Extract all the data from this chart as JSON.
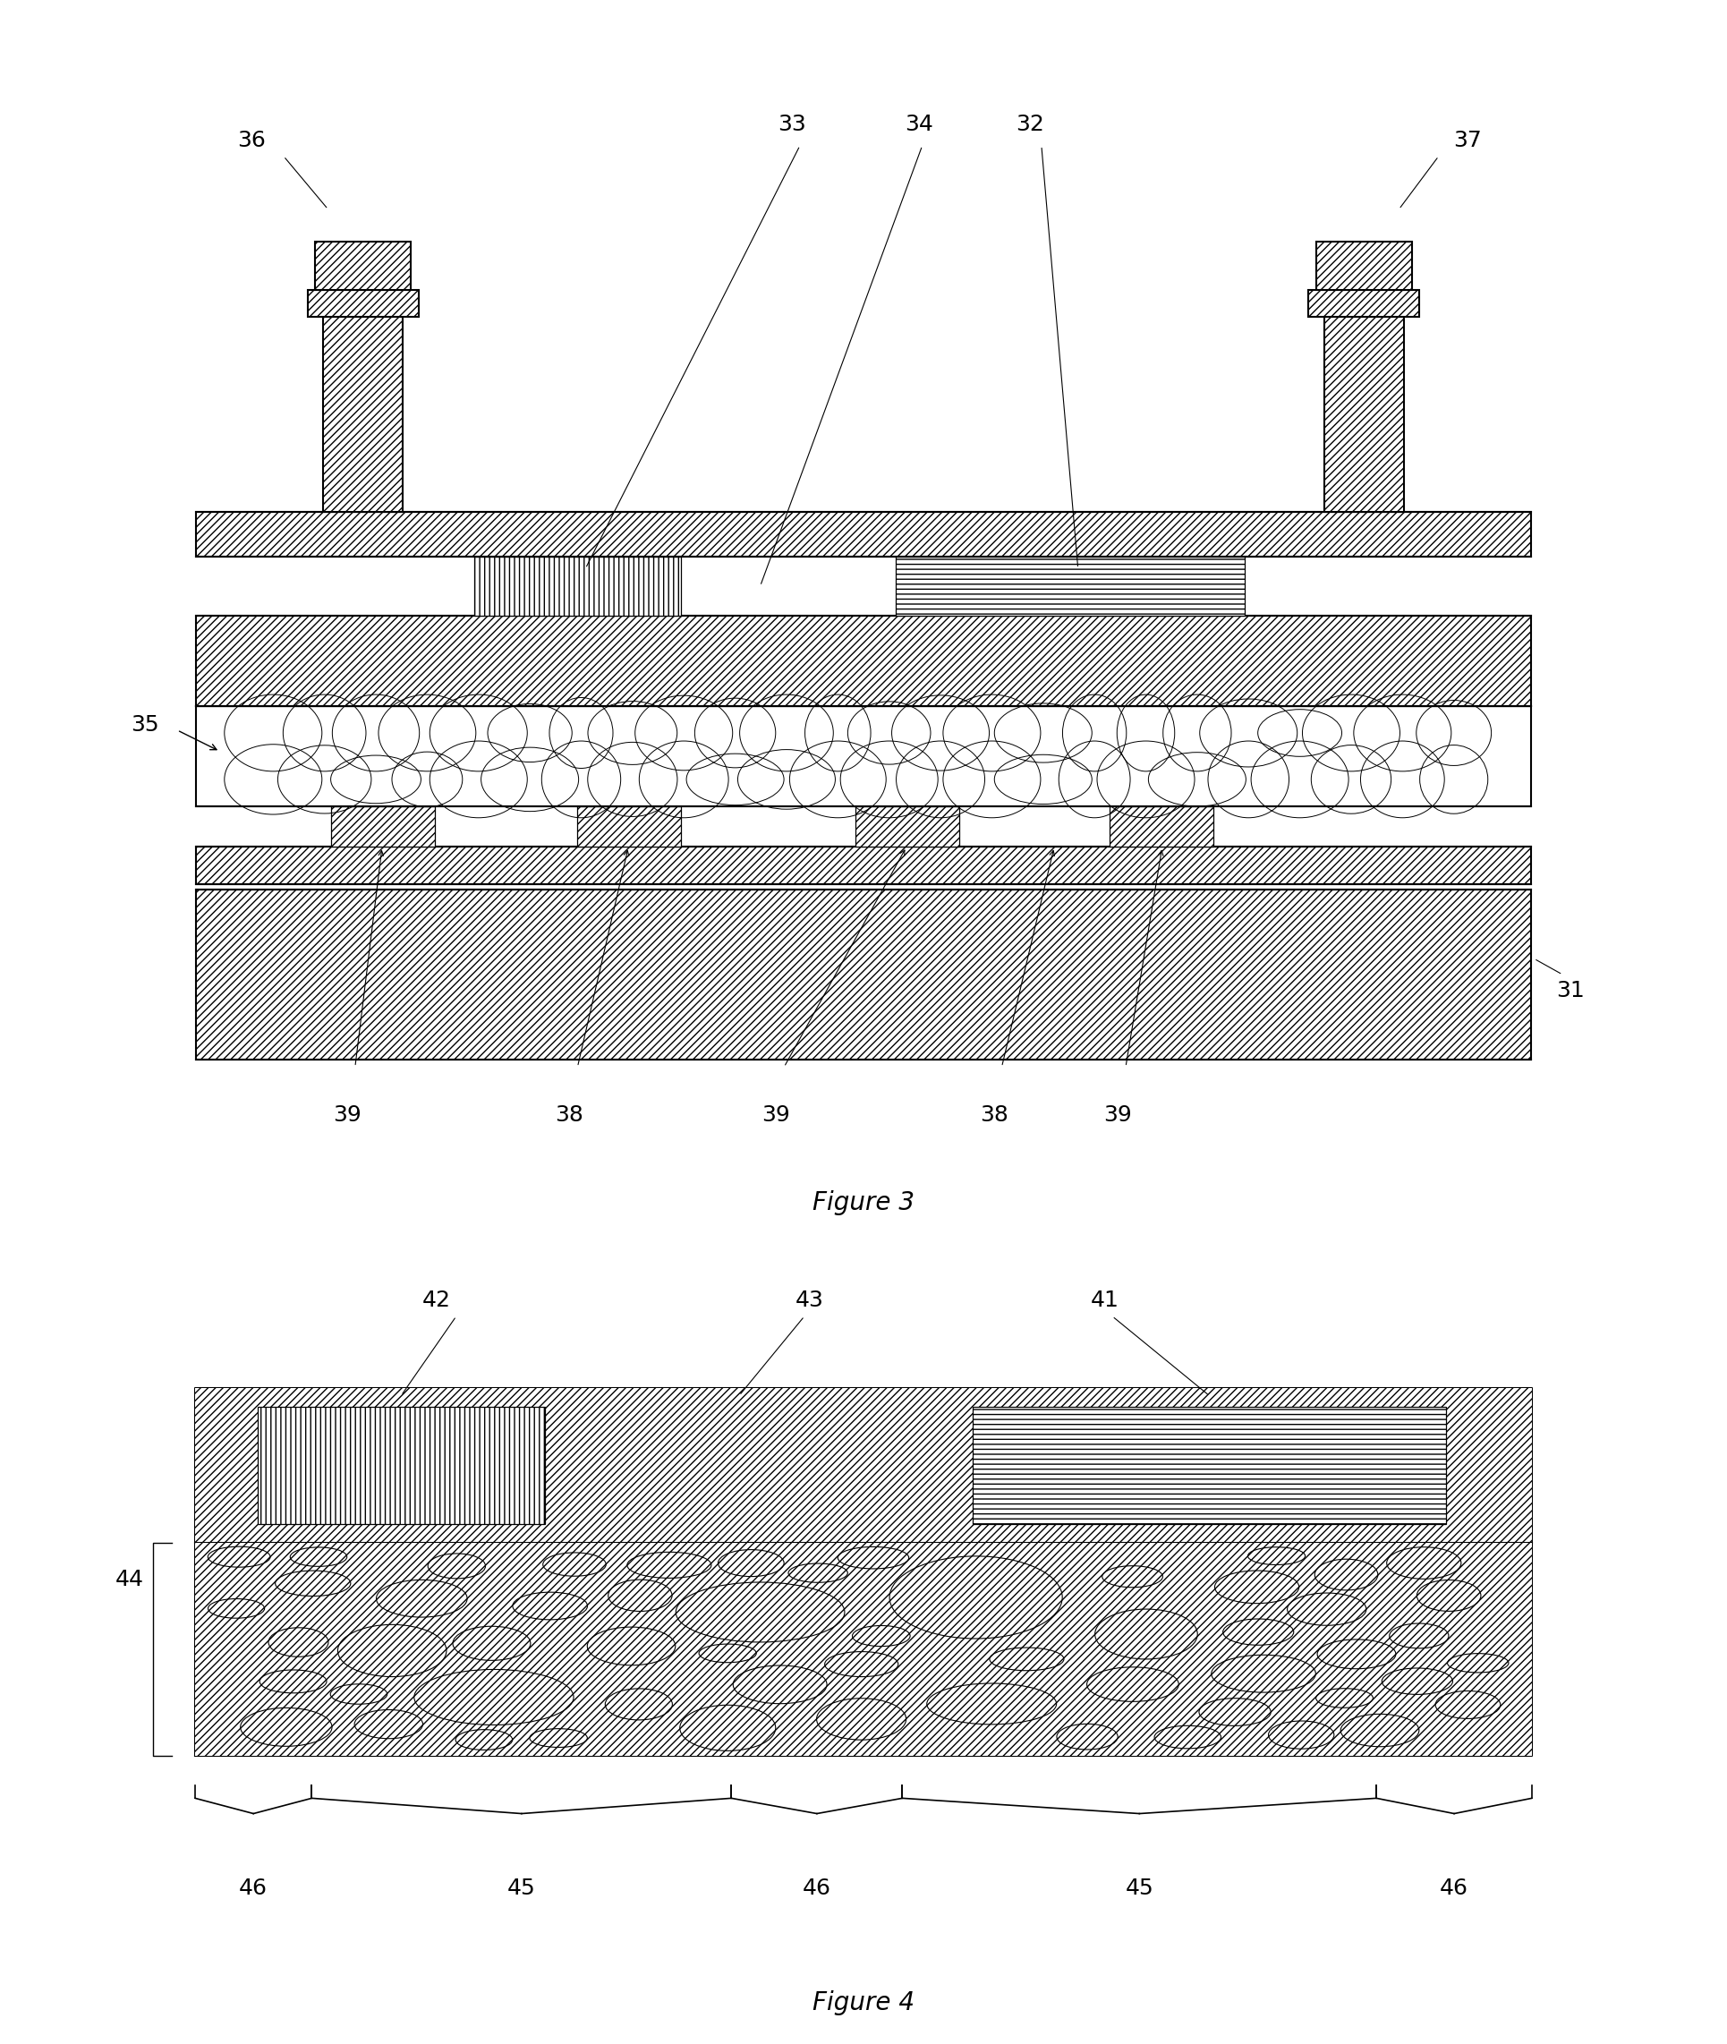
{
  "bg_color": "#ffffff",
  "line_color": "#000000",
  "fig3_title": "Figure 3",
  "fig4_title": "Figure 4",
  "label_fontsize": 18,
  "title_fontsize": 20
}
